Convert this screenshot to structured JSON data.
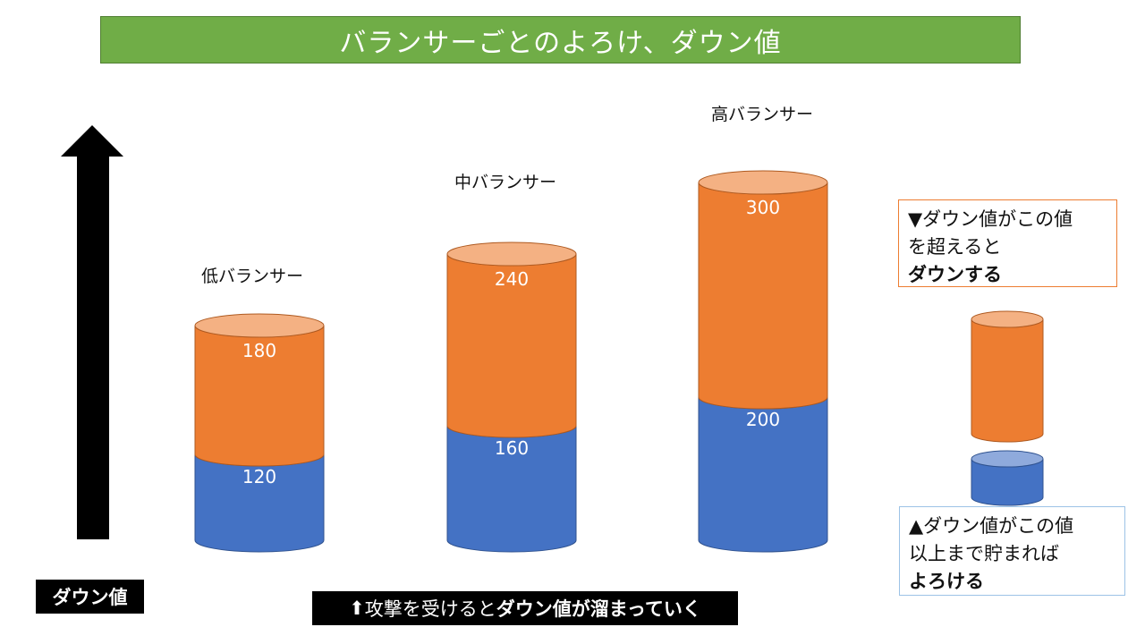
{
  "title": "バランサーごとのよろけ、ダウン値",
  "colors": {
    "title_bg": "#70ad47",
    "down_segment": "#ed7d31",
    "down_top": "#f4b183",
    "dodge_segment": "#4472c4",
    "dodge_top": "#8faadc",
    "arrow": "#000000"
  },
  "chart_data": {
    "type": "bar",
    "stacked": true,
    "categories": [
      "低バランサー",
      "中バランサー",
      "高バランサー"
    ],
    "series": [
      {
        "key": "dodge",
        "values": [
          120,
          160,
          200
        ]
      },
      {
        "key": "down",
        "values": [
          180,
          240,
          300
        ]
      }
    ],
    "grid": false,
    "legend": "right"
  },
  "legend": {
    "down_text_line1": "▼ダウン値がこの値",
    "down_text_line2": "を超えると",
    "down_text_strong": "ダウンする",
    "dodge_text_line1": "▲ダウン値がこの値",
    "dodge_text_line2": "以上まで貯まれば",
    "dodge_text_strong": "よろける"
  },
  "axis_caption": "ダウン値",
  "arrow_icon": "up-arrow-icon",
  "bottom_caption": {
    "icon": "⬆",
    "text": "攻撃を受けると",
    "strong": "ダウン値が溜まっていく"
  }
}
